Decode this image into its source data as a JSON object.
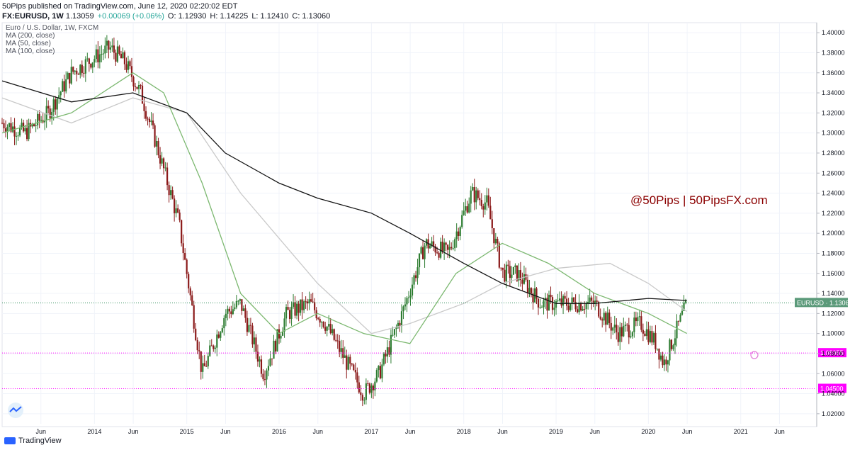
{
  "header": {
    "line1": "50Pips published on TradingView.com, June 12, 2020 02:20:02 EDT",
    "symbol": "FX:EURUSD, 1W",
    "price": "1.13059",
    "change": "+0.00069 (+0.06%)",
    "open": "O: 1.12930",
    "high": "H: 1.14225",
    "low": "L: 1.12410",
    "close": "C: 1.13060"
  },
  "footer": {
    "brand": "TradingView"
  },
  "colors": {
    "up": "#26a69a",
    "down": "#b22833",
    "candle_up": "#2e7d32",
    "candle_down": "#8b1a1a",
    "ma200": "#131313",
    "ma50": "#7cb870",
    "ma100": "#c9c9c9",
    "level_line": "#ff00ff",
    "current_line": "#2e8b57",
    "watermark_text": "#8b0000"
  },
  "chart_data": {
    "type": "candlestick",
    "title": "Euro / U.S. Dollar, 1W, FXCM",
    "legend": [
      "MA (200, close)",
      "MA (50, close)",
      "MA (100, close)"
    ],
    "watermark": "@50Pips | 50PipsFX.com",
    "ylim": [
      1.01,
      1.41
    ],
    "y_ticks": [
      "1.40000",
      "1.38000",
      "1.36000",
      "1.34000",
      "1.32000",
      "1.30000",
      "1.28000",
      "1.26000",
      "1.24000",
      "1.22000",
      "1.20000",
      "1.18000",
      "1.16000",
      "1.14000",
      "1.12000",
      "1.10000",
      "1.08000",
      "1.06000",
      "1.04000",
      "1.02000"
    ],
    "x_ticks": [
      "Jun",
      "2014",
      "Jun",
      "2015",
      "Jun",
      "2016",
      "Jun",
      "2017",
      "Jun",
      "2018",
      "Jun",
      "2019",
      "Jun",
      "2020",
      "Jun",
      "2021",
      "Jun"
    ],
    "horizontal_levels": [
      {
        "label": "1.08055",
        "value": 1.08055
      },
      {
        "label": "1.04500",
        "value": 1.045
      }
    ],
    "current_price": {
      "label": "EURUSD · 1.13060",
      "value": 1.1306
    },
    "price_path": [
      {
        "date": "2013-01",
        "close": 1.31
      },
      {
        "date": "2013-04",
        "close": 1.3
      },
      {
        "date": "2013-07",
        "close": 1.32
      },
      {
        "date": "2013-10",
        "close": 1.36
      },
      {
        "date": "2013-12",
        "close": 1.37
      },
      {
        "date": "2014-03",
        "close": 1.385
      },
      {
        "date": "2014-05",
        "close": 1.37
      },
      {
        "date": "2014-07",
        "close": 1.34
      },
      {
        "date": "2014-09",
        "close": 1.29
      },
      {
        "date": "2014-12",
        "close": 1.21
      },
      {
        "date": "2015-03",
        "close": 1.06
      },
      {
        "date": "2015-04",
        "close": 1.08
      },
      {
        "date": "2015-06",
        "close": 1.12
      },
      {
        "date": "2015-08",
        "close": 1.13
      },
      {
        "date": "2015-11",
        "close": 1.06
      },
      {
        "date": "2016-02",
        "close": 1.12
      },
      {
        "date": "2016-05",
        "close": 1.13
      },
      {
        "date": "2016-07",
        "close": 1.11
      },
      {
        "date": "2016-12",
        "close": 1.04
      },
      {
        "date": "2017-02",
        "close": 1.06
      },
      {
        "date": "2017-05",
        "close": 1.12
      },
      {
        "date": "2017-08",
        "close": 1.19
      },
      {
        "date": "2017-11",
        "close": 1.18
      },
      {
        "date": "2018-02",
        "close": 1.24
      },
      {
        "date": "2018-04",
        "close": 1.23
      },
      {
        "date": "2018-06",
        "close": 1.16
      },
      {
        "date": "2018-08",
        "close": 1.16
      },
      {
        "date": "2018-11",
        "close": 1.13
      },
      {
        "date": "2019-02",
        "close": 1.13
      },
      {
        "date": "2019-06",
        "close": 1.13
      },
      {
        "date": "2019-09",
        "close": 1.1
      },
      {
        "date": "2019-12",
        "close": 1.11
      },
      {
        "date": "2020-02",
        "close": 1.09
      },
      {
        "date": "2020-03",
        "close": 1.07
      },
      {
        "date": "2020-04",
        "close": 1.09
      },
      {
        "date": "2020-06",
        "close": 1.13
      }
    ],
    "ma200_path": [
      {
        "date": "2013-01",
        "value": 1.352
      },
      {
        "date": "2013-10",
        "value": 1.331
      },
      {
        "date": "2014-06",
        "value": 1.34
      },
      {
        "date": "2015-01",
        "value": 1.32
      },
      {
        "date": "2015-06",
        "value": 1.28
      },
      {
        "date": "2016-01",
        "value": 1.25
      },
      {
        "date": "2016-06",
        "value": 1.235
      },
      {
        "date": "2017-01",
        "value": 1.22
      },
      {
        "date": "2017-06",
        "value": 1.2
      },
      {
        "date": "2018-01",
        "value": 1.17
      },
      {
        "date": "2018-06",
        "value": 1.15
      },
      {
        "date": "2019-01",
        "value": 1.13
      },
      {
        "date": "2019-06",
        "value": 1.13
      },
      {
        "date": "2020-01",
        "value": 1.135
      },
      {
        "date": "2020-06",
        "value": 1.133
      }
    ],
    "ma50_path": [
      {
        "date": "2013-01",
        "value": 1.3
      },
      {
        "date": "2013-10",
        "value": 1.32
      },
      {
        "date": "2014-06",
        "value": 1.36
      },
      {
        "date": "2014-10",
        "value": 1.34
      },
      {
        "date": "2015-03",
        "value": 1.25
      },
      {
        "date": "2015-08",
        "value": 1.14
      },
      {
        "date": "2016-01",
        "value": 1.1
      },
      {
        "date": "2016-06",
        "value": 1.12
      },
      {
        "date": "2016-12",
        "value": 1.1
      },
      {
        "date": "2017-06",
        "value": 1.09
      },
      {
        "date": "2017-12",
        "value": 1.16
      },
      {
        "date": "2018-06",
        "value": 1.19
      },
      {
        "date": "2018-12",
        "value": 1.17
      },
      {
        "date": "2019-06",
        "value": 1.14
      },
      {
        "date": "2020-01",
        "value": 1.12
      },
      {
        "date": "2020-06",
        "value": 1.1
      }
    ],
    "ma100_path": [
      {
        "date": "2013-01",
        "value": 1.335
      },
      {
        "date": "2013-10",
        "value": 1.31
      },
      {
        "date": "2014-06",
        "value": 1.335
      },
      {
        "date": "2015-01",
        "value": 1.32
      },
      {
        "date": "2015-08",
        "value": 1.24
      },
      {
        "date": "2016-06",
        "value": 1.15
      },
      {
        "date": "2017-01",
        "value": 1.1
      },
      {
        "date": "2017-06",
        "value": 1.11
      },
      {
        "date": "2018-01",
        "value": 1.13
      },
      {
        "date": "2018-06",
        "value": 1.15
      },
      {
        "date": "2019-01",
        "value": 1.165
      },
      {
        "date": "2019-08",
        "value": 1.17
      },
      {
        "date": "2020-01",
        "value": 1.15
      },
      {
        "date": "2020-06",
        "value": 1.122
      }
    ]
  }
}
